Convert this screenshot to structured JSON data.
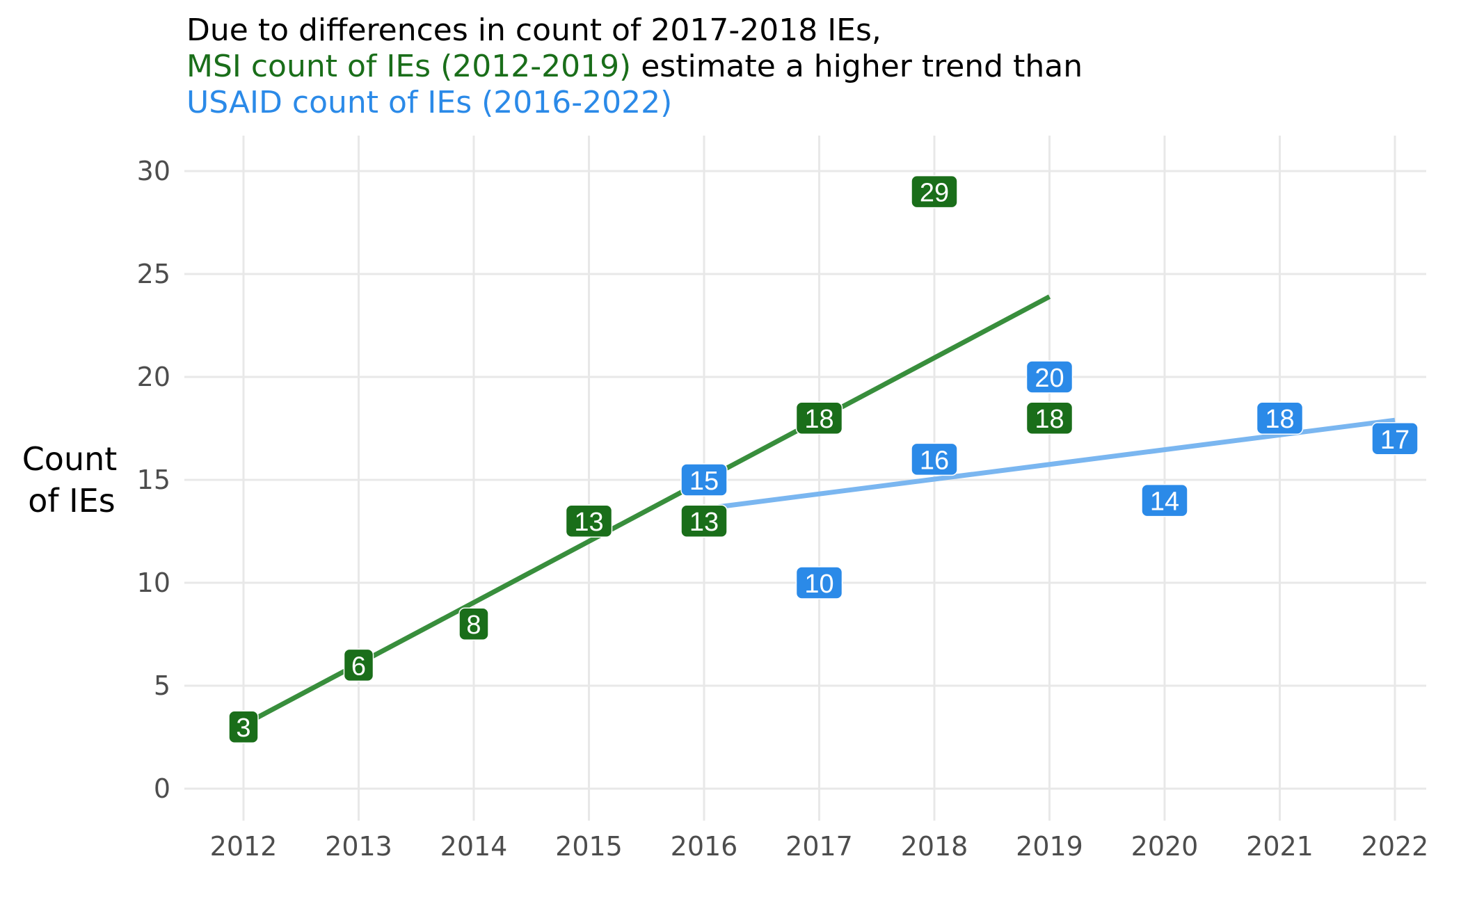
{
  "chart_data": {
    "type": "scatter",
    "title": {
      "line1": "Due to differences in count of 2017-2018 IEs,",
      "line2_series": "MSI count of IEs (2012-2019)",
      "line2_rest": " estimate a higher trend than",
      "line3": "USAID count of IEs (2016-2022)"
    },
    "xlabel": "",
    "ylabel": [
      "Count",
      "of IEs"
    ],
    "xlim": [
      2011.5,
      2022.3
    ],
    "ylim": [
      -1.3,
      31.5
    ],
    "x_ticks": [
      2012,
      2013,
      2014,
      2015,
      2016,
      2017,
      2018,
      2019,
      2020,
      2021,
      2022
    ],
    "y_ticks": [
      0,
      5,
      10,
      15,
      20,
      25,
      30
    ],
    "grid": true,
    "series": [
      {
        "name": "MSI count of IEs (2012-2019)",
        "color": "#1a6e1a",
        "trend_color": "#388e3c",
        "points": [
          {
            "x": 2012,
            "y": 3
          },
          {
            "x": 2013,
            "y": 6
          },
          {
            "x": 2014,
            "y": 8
          },
          {
            "x": 2015,
            "y": 13
          },
          {
            "x": 2016,
            "y": 13
          },
          {
            "x": 2017,
            "y": 18
          },
          {
            "x": 2018,
            "y": 29
          },
          {
            "x": 2019,
            "y": 18
          }
        ],
        "trend": [
          {
            "x": 2012,
            "y": 3.1
          },
          {
            "x": 2019,
            "y": 23.9
          }
        ]
      },
      {
        "name": "USAID count of IEs (2016-2022)",
        "color": "#2b8ae8",
        "trend_color": "#7ab6f0",
        "points": [
          {
            "x": 2016,
            "y": 15
          },
          {
            "x": 2017,
            "y": 10
          },
          {
            "x": 2018,
            "y": 16
          },
          {
            "x": 2019,
            "y": 20
          },
          {
            "x": 2020,
            "y": 14
          },
          {
            "x": 2021,
            "y": 18
          },
          {
            "x": 2022,
            "y": 17
          }
        ],
        "trend": [
          {
            "x": 2016,
            "y": 13.6
          },
          {
            "x": 2022,
            "y": 17.9
          }
        ]
      }
    ]
  }
}
